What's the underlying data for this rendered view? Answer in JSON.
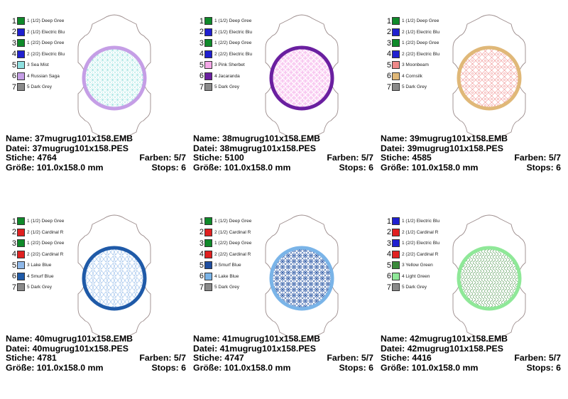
{
  "designs": [
    {
      "name": "Name: 37mugrug101x158.EMB",
      "file": "Datei: 37mugrug101x158.PES",
      "stitches": "Stiche: 4764",
      "colors": "Farben: 5/7",
      "size": "Größe: 101.0x158.0 mm",
      "stops": "Stops: 6",
      "ring_color": "#c59ee6",
      "fill_color": "#7fd9d6",
      "pattern": "grid",
      "legend": [
        {
          "num": "1",
          "label": "1 (1/2) Deep Gree",
          "color": "#0f8a2a"
        },
        {
          "num": "2",
          "label": "2 (1/2) Electric Blu",
          "color": "#1f1fd0"
        },
        {
          "num": "3",
          "label": "1 (2/2) Deep Gree",
          "color": "#0f8a2a"
        },
        {
          "num": "4",
          "label": "2 (2/2) Electric Blu",
          "color": "#1f1fd0"
        },
        {
          "num": "5",
          "label": "3 Sea Mist",
          "color": "#8fe0e0"
        },
        {
          "num": "6",
          "label": "4 Russian Saga",
          "color": "#c59ee6"
        },
        {
          "num": "7",
          "label": "5 Dark Grey",
          "color": "#8a8a8a"
        }
      ]
    },
    {
      "name": "Name: 38mugrug101x158.EMB",
      "file": "Datei: 38mugrug101x158.PES",
      "stitches": "Stiche: 5100",
      "colors": "Farben: 5/7",
      "size": "Größe: 101.0x158.0 mm",
      "stops": "Stops: 6",
      "ring_color": "#6a1fa0",
      "fill_color": "#f5a8e8",
      "pattern": "rings",
      "legend": [
        {
          "num": "1",
          "label": "1 (1/2) Deep Gree",
          "color": "#0f8a2a"
        },
        {
          "num": "2",
          "label": "2 (1/2) Electric Blu",
          "color": "#1f1fd0"
        },
        {
          "num": "3",
          "label": "1 (2/2) Deep Gree",
          "color": "#0f8a2a"
        },
        {
          "num": "4",
          "label": "2 (2/2) Electric Blu",
          "color": "#1f1fd0"
        },
        {
          "num": "5",
          "label": "3 Pink Sherbet",
          "color": "#f5a8e8"
        },
        {
          "num": "6",
          "label": "4 Jacaranda",
          "color": "#6a1fa0"
        },
        {
          "num": "7",
          "label": "5 Dark Grey",
          "color": "#8a8a8a"
        }
      ]
    },
    {
      "name": "Name: 39mugrug101x158.EMB",
      "file": "Datei: 39mugrug101x158.PES",
      "stitches": "Stiche: 4585",
      "colors": "Farben: 5/7",
      "size": "Größe: 101.0x158.0 mm",
      "stops": "Stops: 6",
      "ring_color": "#e0b878",
      "fill_color": "#ef8a8a",
      "pattern": "diamond",
      "legend": [
        {
          "num": "1",
          "label": "1 (1/2) Deep Gree",
          "color": "#0f8a2a"
        },
        {
          "num": "2",
          "label": "2 (1/2) Electric Blu",
          "color": "#1f1fd0"
        },
        {
          "num": "3",
          "label": "1 (2/2) Deep Gree",
          "color": "#0f8a2a"
        },
        {
          "num": "4",
          "label": "2 (2/2) Electric Blu",
          "color": "#1f1fd0"
        },
        {
          "num": "5",
          "label": "3 Moonbeam",
          "color": "#ef8a8a"
        },
        {
          "num": "6",
          "label": "4 Cornsilk",
          "color": "#e0b878"
        },
        {
          "num": "7",
          "label": "5 Dark Grey",
          "color": "#8a8a8a"
        }
      ]
    },
    {
      "name": "Name: 40mugrug101x158.EMB",
      "file": "Datei: 40mugrug101x158.PES",
      "stitches": "Stiche: 4781",
      "colors": "Farben: 5/7",
      "size": "Größe: 101.0x158.0 mm",
      "stops": "Stops: 6",
      "ring_color": "#1f5aa8",
      "fill_color": "#8fb8e8",
      "pattern": "hex",
      "legend": [
        {
          "num": "1",
          "label": "1 (1/2) Deep Gree",
          "color": "#0f8a2a"
        },
        {
          "num": "2",
          "label": "2 (1/2) Cardinal R",
          "color": "#e02020"
        },
        {
          "num": "3",
          "label": "1 (2/2) Deep Gree",
          "color": "#0f8a2a"
        },
        {
          "num": "4",
          "label": "2 (2/2) Cardinal R",
          "color": "#e02020"
        },
        {
          "num": "5",
          "label": "3 Lake Blue",
          "color": "#8fb8e8"
        },
        {
          "num": "6",
          "label": "4 Smurf Blue",
          "color": "#1f5aa8"
        },
        {
          "num": "7",
          "label": "5 Dark Grey",
          "color": "#8a8a8a"
        }
      ]
    },
    {
      "name": "Name: 41mugrug101x158.EMB",
      "file": "Datei: 41mugrug101x158.PES",
      "stitches": "Stiche: 4747",
      "colors": "Farben: 5/7",
      "size": "Größe: 101.0x158.0 mm",
      "stops": "Stops: 6",
      "ring_color": "#7ab4e8",
      "fill_color": "#1f4ea0",
      "pattern": "star",
      "legend": [
        {
          "num": "1",
          "label": "1 (1/2) Deep Gree",
          "color": "#0f8a2a"
        },
        {
          "num": "2",
          "label": "2 (1/2) Cardinal R",
          "color": "#e02020"
        },
        {
          "num": "3",
          "label": "1 (2/2) Deep Gree",
          "color": "#0f8a2a"
        },
        {
          "num": "4",
          "label": "2 (2/2) Cardinal R",
          "color": "#e02020"
        },
        {
          "num": "5",
          "label": "3 Smurf Blue",
          "color": "#1f4ea0"
        },
        {
          "num": "6",
          "label": "4 Lake Blue",
          "color": "#7ab4e8"
        },
        {
          "num": "7",
          "label": "5 Dark Grey",
          "color": "#8a8a8a"
        }
      ]
    },
    {
      "name": "Name: 42mugrug101x158.EMB",
      "file": "Datei: 42mugrug101x158.PES",
      "stitches": "Stiche: 4416",
      "colors": "Farben: 5/7",
      "size": "Größe: 101.0x158.0 mm",
      "stops": "Stops: 6",
      "ring_color": "#8fe898",
      "fill_color": "#3a8a3a",
      "pattern": "wave",
      "legend": [
        {
          "num": "1",
          "label": "1 (1/2) Electric Blu",
          "color": "#1f1fd0"
        },
        {
          "num": "2",
          "label": "2 (1/2) Cardinal R",
          "color": "#e02020"
        },
        {
          "num": "3",
          "label": "1 (2/2) Electric Blu",
          "color": "#1f1fd0"
        },
        {
          "num": "4",
          "label": "2 (2/2) Cardinal R",
          "color": "#e02020"
        },
        {
          "num": "5",
          "label": "3 Yellow Green",
          "color": "#3a8a3a"
        },
        {
          "num": "6",
          "label": "4 Light Green",
          "color": "#8fe898"
        },
        {
          "num": "7",
          "label": "5 Dark Grey",
          "color": "#8a8a8a"
        }
      ]
    }
  ],
  "outline_color": "#9a8a8a"
}
